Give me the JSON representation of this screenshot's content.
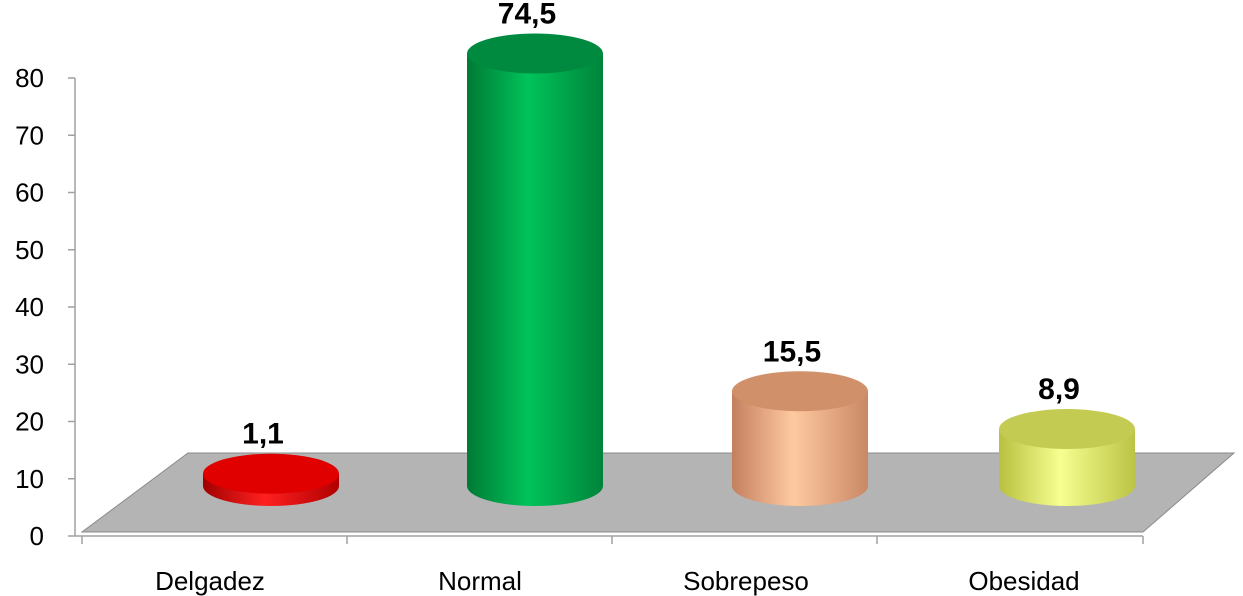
{
  "chart_data": {
    "type": "bar",
    "title": "",
    "xlabel": "",
    "ylabel": "",
    "categories": [
      "Delgadez",
      "Normal",
      "Sobrepeso",
      "Obesidad"
    ],
    "values": [
      1.1,
      74.5,
      15.5,
      8.9
    ],
    "value_labels": [
      "1,1",
      "74,5",
      "15,5",
      "8,9"
    ],
    "ylim": [
      0,
      80
    ],
    "yticks": [
      "0",
      "10",
      "20",
      "30",
      "40",
      "50",
      "60",
      "70",
      "80"
    ],
    "grid": false,
    "legend": "none",
    "style": "3d-cylinder",
    "colors": [
      "#e00000",
      "#00b050",
      "#f4a880",
      "#e6ef70"
    ],
    "floor_color": "#b4b4b4"
  }
}
